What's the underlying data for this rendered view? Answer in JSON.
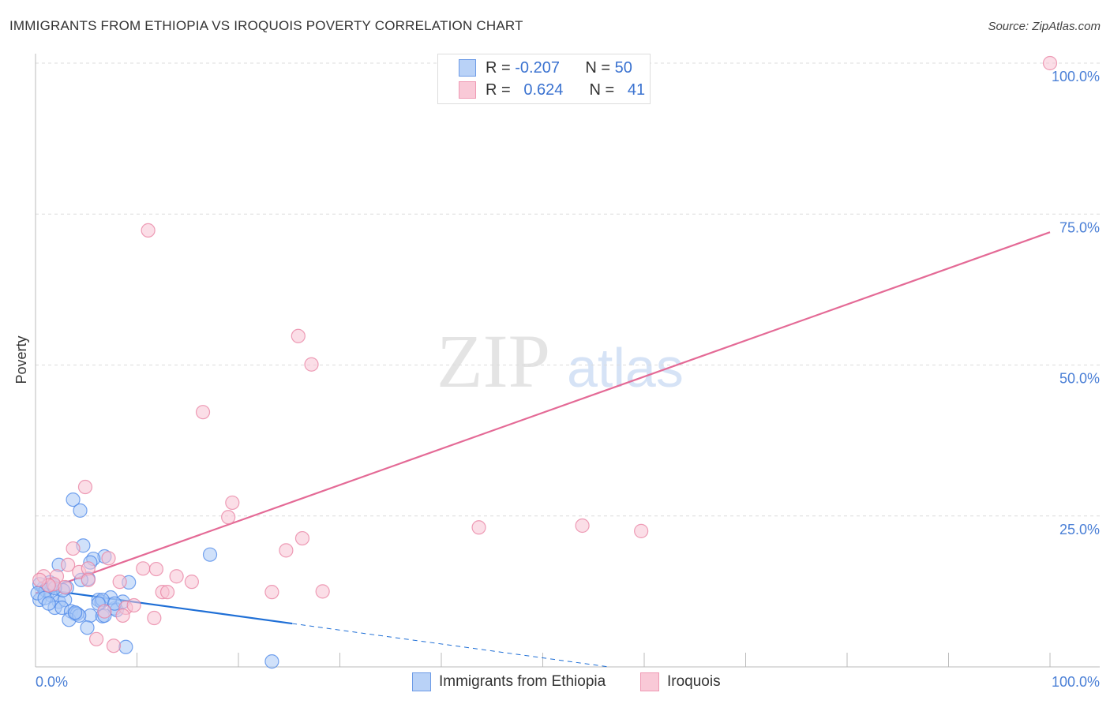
{
  "chart_data": {
    "type": "scatter",
    "title": "IMMIGRANTS FROM ETHIOPIA VS IROQUOIS POVERTY CORRELATION CHART",
    "source": "Source: ZipAtlas.com",
    "ylabel": "Poverty",
    "xlabel": "",
    "xlim": [
      0,
      100
    ],
    "ylim": [
      0,
      100
    ],
    "x_tick_labels": [
      "0.0%",
      "100.0%"
    ],
    "y_tick_labels": [
      {
        "v": 100,
        "t": "100.0%"
      },
      {
        "v": 75,
        "t": "75.0%"
      },
      {
        "v": 50,
        "t": "50.0%"
      },
      {
        "v": 25,
        "t": "25.0%"
      }
    ],
    "grid": true,
    "watermark": "ZIPatlas",
    "legend": [
      {
        "r_label": "R =",
        "r": "-0.207",
        "n_label": "N =",
        "n": "50"
      },
      {
        "r_label": "R =",
        "r": "0.624",
        "n_label": "N =",
        "n": "41"
      }
    ],
    "series": [
      {
        "name": "Immigrants from Ethiopia",
        "color": "#4a86e8",
        "fill": "#a9c8f5",
        "line": "#1f6fd6",
        "trend": {
          "intercept": 13.0,
          "slope": -0.23,
          "solid_to": 25.3,
          "dashed_to": 56.5
        },
        "x": [
          3.7,
          4.4,
          4.7,
          2.3,
          6.8,
          5.7,
          5.4,
          5.2,
          9.2,
          17.2,
          0.8,
          1.2,
          0.4,
          1.6,
          2.3,
          2.9,
          1.9,
          2.6,
          3.5,
          3.9,
          4.1,
          3.3,
          5.4,
          6.6,
          7.8,
          8.0,
          6.2,
          6.5,
          7.4,
          8.6,
          5.1,
          8.9,
          23.3,
          1.4,
          3.1,
          0.4,
          1.0,
          1.8,
          6.6,
          6.2,
          7.8,
          6.8,
          4.3,
          2.7,
          1.9,
          0.2,
          0.9,
          1.3,
          3.9,
          4.5
        ],
        "y": [
          27.7,
          25.9,
          20.1,
          16.9,
          18.3,
          17.9,
          17.3,
          14.6,
          14.0,
          18.6,
          13.1,
          12.4,
          11.1,
          11.8,
          10.8,
          11.1,
          9.8,
          9.8,
          9.2,
          8.8,
          8.8,
          7.8,
          8.5,
          8.4,
          9.7,
          9.4,
          11.1,
          10.8,
          11.5,
          10.8,
          6.5,
          3.3,
          0.9,
          14.0,
          13.1,
          13.7,
          12.7,
          13.5,
          11.1,
          10.5,
          10.5,
          8.5,
          8.5,
          12.7,
          13.1,
          12.2,
          11.4,
          10.5,
          9.0,
          14.4
        ]
      },
      {
        "name": "Iroquois",
        "color": "#e87fa0",
        "fill": "#f8c3d3",
        "line": "#e46a96",
        "trend": {
          "intercept": 12.2,
          "slope": 0.598,
          "solid_to": 100,
          "dashed_to": 100
        },
        "x": [
          100,
          11.1,
          25.9,
          27.2,
          16.5,
          4.9,
          19.4,
          19.0,
          26.3,
          24.7,
          3.7,
          3.2,
          7.2,
          10.6,
          11.9,
          13.9,
          15.4,
          8.3,
          0.8,
          2.1,
          1.8,
          2.9,
          4.3,
          5.2,
          12.5,
          13.0,
          23.3,
          28.3,
          8.9,
          9.7,
          8.6,
          11.7,
          6.0,
          7.7,
          43.7,
          53.9,
          59.7,
          1.3,
          5.2,
          6.8,
          0.4
        ],
        "y": [
          100,
          72.3,
          54.8,
          50.1,
          42.2,
          29.8,
          27.2,
          24.8,
          21.3,
          19.3,
          19.6,
          16.9,
          18.0,
          16.3,
          16.2,
          15.0,
          14.1,
          14.1,
          15.0,
          15.0,
          13.7,
          13.2,
          15.7,
          16.3,
          12.4,
          12.4,
          12.4,
          12.5,
          9.8,
          10.2,
          8.5,
          8.1,
          4.6,
          3.5,
          23.1,
          23.4,
          22.5,
          13.5,
          14.4,
          9.2,
          14.4
        ]
      }
    ]
  }
}
